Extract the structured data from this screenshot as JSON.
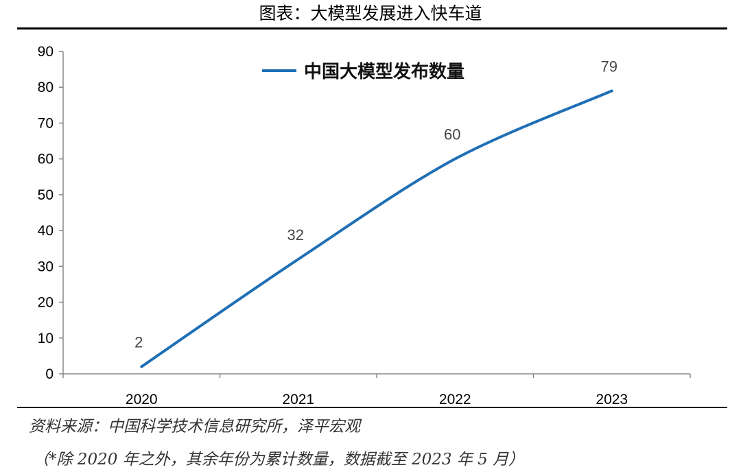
{
  "header": {
    "title": "图表：大模型发展进入快车道"
  },
  "footer": {
    "source": "资料来源：中国科学技术信息研究所，泽平宏观",
    "note": "（*除 2020 年之外，其余年份为累计数量，数据截至 2023 年 5 月）"
  },
  "chart_data": {
    "type": "line",
    "categories": [
      "2020",
      "2021",
      "2022",
      "2023"
    ],
    "series": [
      {
        "name": "中国大模型发布数量",
        "values": [
          2,
          32,
          60,
          79
        ],
        "color": "#1f6fb5"
      }
    ],
    "data_labels": [
      "2",
      "32",
      "60",
      "79"
    ],
    "ylim": [
      0,
      90
    ],
    "yticks": [
      0,
      10,
      20,
      30,
      40,
      50,
      60,
      70,
      80,
      90
    ],
    "ytick_labels": [
      "0",
      "10",
      "20",
      "30",
      "40",
      "50",
      "60",
      "70",
      "80",
      "90"
    ],
    "grid": false,
    "legend_position": "top-center"
  }
}
